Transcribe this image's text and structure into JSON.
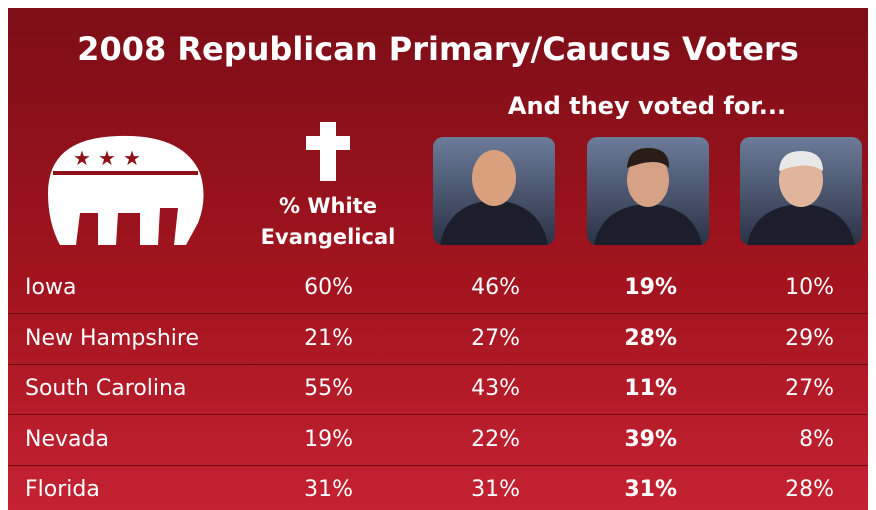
{
  "title": "2008 Republican Primary/Caucus Voters",
  "subtitle": "And they voted for...",
  "table": {
    "header": "% White Evangelical",
    "rows": [
      [
        "Iowa",
        "60%",
        "46%",
        "19%",
        "10%"
      ],
      [
        "New Hampshire",
        "21%",
        "27%",
        "28%",
        "29%"
      ],
      [
        "South Carolina",
        "55%",
        "43%",
        "11%",
        "27%"
      ],
      [
        "Nevada",
        "19%",
        "22%",
        "39%",
        "8%"
      ],
      [
        "Florida",
        "31%",
        "31%",
        "31%",
        "28%"
      ]
    ]
  }
}
